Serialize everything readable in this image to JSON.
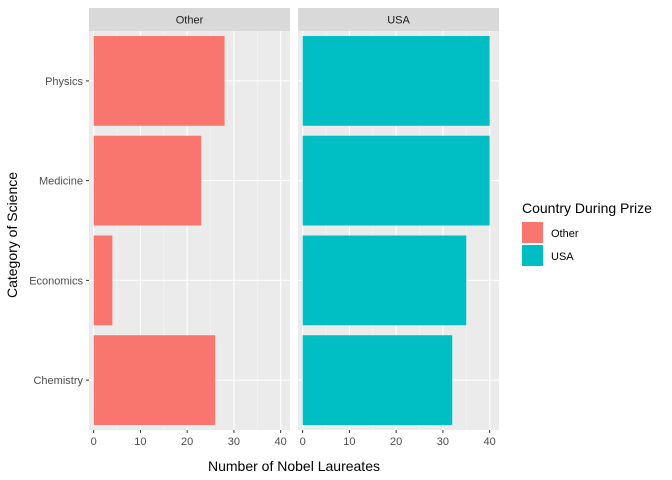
{
  "chart_data": {
    "type": "bar",
    "orientation": "horizontal",
    "categories": [
      "Chemistry",
      "Economics",
      "Medicine",
      "Physics"
    ],
    "facets": [
      {
        "label": "Other",
        "color": "#F8766D",
        "values": [
          26,
          4,
          23,
          28
        ]
      },
      {
        "label": "USA",
        "color": "#00BFC4",
        "values": [
          32,
          35,
          40,
          40
        ]
      }
    ],
    "xlabel": "Number of Nobel Laureates",
    "ylabel": "Category of Science",
    "xlim": [
      -1,
      42
    ],
    "xticks": [
      0,
      10,
      20,
      30,
      40
    ],
    "grid": true,
    "legend": {
      "title": "Country During Prize",
      "position": "right",
      "items": [
        {
          "label": "Other",
          "color": "#F8766D"
        },
        {
          "label": "USA",
          "color": "#00BFC4"
        }
      ]
    }
  }
}
